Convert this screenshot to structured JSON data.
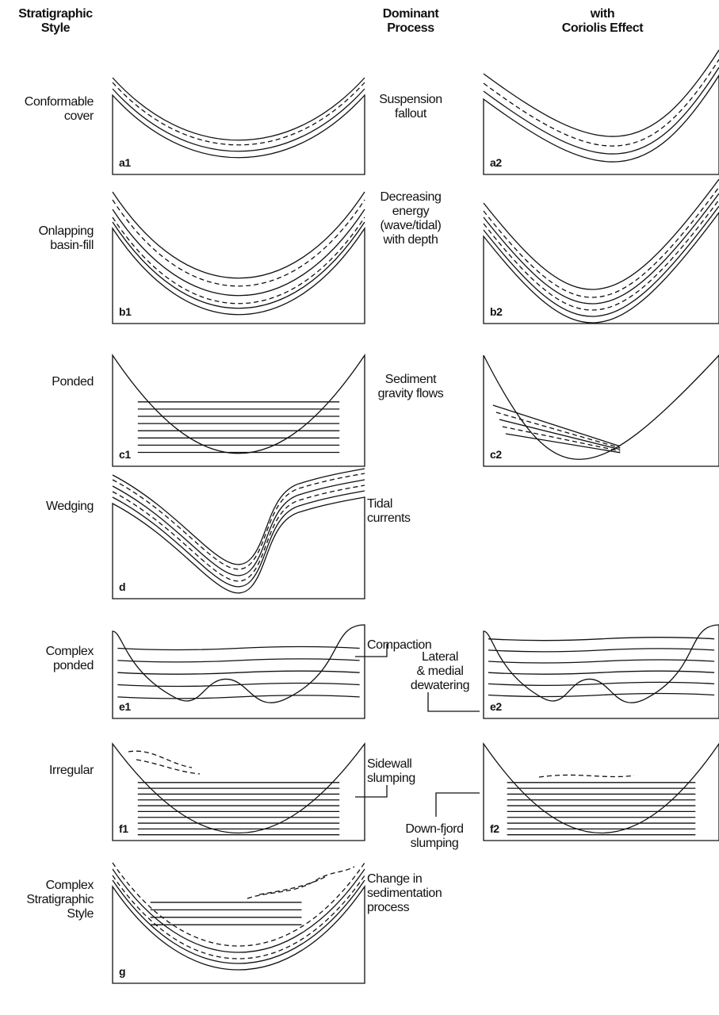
{
  "headers": {
    "style": [
      "Stratigraphic",
      "Style"
    ],
    "process": [
      "Dominant",
      "Process"
    ],
    "coriolis": [
      "with",
      "Coriolis Effect"
    ]
  },
  "rows": [
    {
      "style": [
        "Conformable",
        "cover"
      ],
      "panel1": "a1",
      "process": [
        "Suspension",
        "fallout"
      ],
      "panel2": "a2"
    },
    {
      "style": [
        "Onlapping",
        "basin-fill"
      ],
      "panel1": "b1",
      "process": [
        "Decreasing",
        "energy",
        "(wave/tidal)",
        "with depth"
      ],
      "panel2": "b2"
    },
    {
      "style": [
        "Ponded"
      ],
      "panel1": "c1",
      "process": [
        "Sediment",
        "gravity flows"
      ],
      "panel2": "c2"
    },
    {
      "style": [
        "Wedging"
      ],
      "panel1": "d",
      "process": [
        "Tidal",
        "currents"
      ]
    },
    {
      "style": [
        "Complex",
        "ponded"
      ],
      "panel1": "e1",
      "process": [
        "Compaction"
      ],
      "process2": [
        "Lateral",
        "& medial",
        "dewatering"
      ],
      "panel2": "e2"
    },
    {
      "style": [
        "Irregular"
      ],
      "panel1": "f1",
      "process": [
        "Sidewall",
        "slumping"
      ],
      "process2": [
        "Down-fjord",
        "slumping"
      ],
      "panel2": "f2"
    },
    {
      "style": [
        "Complex",
        "Stratigraphic",
        "Style"
      ],
      "panel1": "g",
      "process": [
        "Change in",
        "sedimentation",
        "process"
      ]
    }
  ]
}
